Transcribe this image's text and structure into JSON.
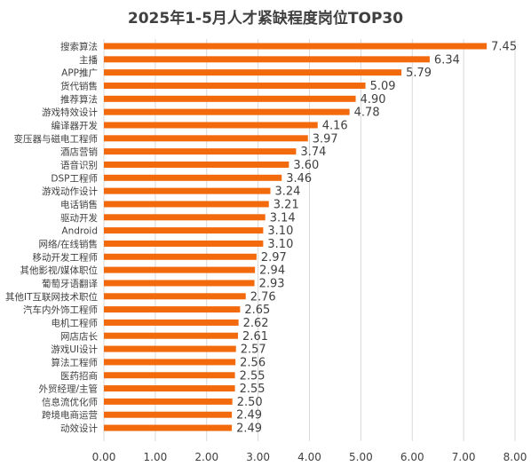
{
  "chart_data": {
    "type": "bar",
    "orientation": "horizontal",
    "title": "2025年1-5月人才紧缺程度岗位TOP30",
    "categories": [
      "搜索算法",
      "主播",
      "APP推广",
      "货代销售",
      "推荐算法",
      "游戏特效设计",
      "编译器开发",
      "变压器与磁电工程师",
      "酒店营销",
      "语音识别",
      "DSP工程师",
      "游戏动作设计",
      "电话销售",
      "驱动开发",
      "Android",
      "网络/在线销售",
      "移动开发工程师",
      "其他影视/媒体职位",
      "葡萄牙语翻译",
      "其他IT互联网技术职位",
      "汽车内外饰工程师",
      "电机工程师",
      "网店店长",
      "游戏UI设计",
      "算法工程师",
      "医药招商",
      "外贸经理/主管",
      "信息流优化师",
      "跨境电商运营",
      "动效设计"
    ],
    "values": [
      7.45,
      6.34,
      5.79,
      5.09,
      4.9,
      4.78,
      4.16,
      3.97,
      3.74,
      3.6,
      3.46,
      3.24,
      3.21,
      3.14,
      3.1,
      3.1,
      2.97,
      2.94,
      2.93,
      2.76,
      2.65,
      2.62,
      2.61,
      2.57,
      2.56,
      2.55,
      2.55,
      2.5,
      2.49,
      2.49
    ],
    "value_labels": [
      "7.45",
      "6.34",
      "5.79",
      "5.09",
      "4.90",
      "4.78",
      "4.16",
      "3.97",
      "3.74",
      "3.60",
      "3.46",
      "3.24",
      "3.21",
      "3.14",
      "3.10",
      "3.10",
      "2.97",
      "2.94",
      "2.93",
      "2.76",
      "2.65",
      "2.62",
      "2.61",
      "2.57",
      "2.56",
      "2.55",
      "2.55",
      "2.50",
      "2.49",
      "2.49"
    ],
    "xlim": [
      0,
      8
    ],
    "xticks": [
      "0.00",
      "1.00",
      "2.00",
      "3.00",
      "4.00",
      "5.00",
      "6.00",
      "7.00",
      "8.00"
    ],
    "xlabel": "",
    "ylabel": "",
    "grid": true,
    "legend": "none",
    "colors": {
      "bar": "#f26a0c",
      "grid": "#d9d9d9",
      "text": "#404040",
      "title": "#404040"
    }
  }
}
